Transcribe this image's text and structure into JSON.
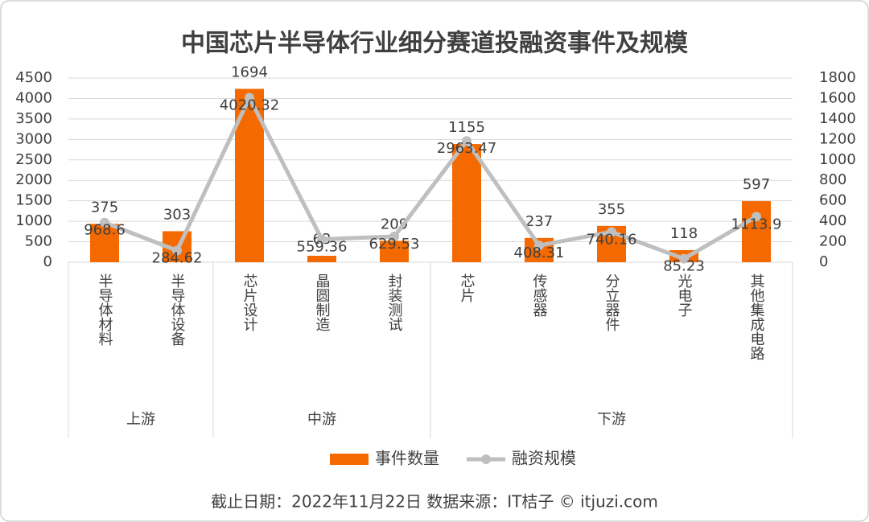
{
  "chart_data": {
    "type": "combo",
    "title": "中国芯片半导体行业细分赛道投融资事件及规模",
    "groups": [
      {
        "name": "上游",
        "categories": [
          "半导体材料",
          "半导体设备"
        ]
      },
      {
        "name": "中游",
        "categories": [
          "芯片设计",
          "晶圆制造",
          "封装测试"
        ]
      },
      {
        "name": "下游",
        "categories": [
          "芯片",
          "传感器",
          "分立器件",
          "光电子",
          "其他集成电路"
        ]
      }
    ],
    "series": [
      {
        "name": "事件数量",
        "type": "bar",
        "axis": "y2",
        "color": "#f56a00",
        "values": [
          375,
          303,
          1694,
          63,
          209,
          1155,
          237,
          355,
          118,
          597
        ]
      },
      {
        "name": "融资规模",
        "type": "line",
        "color": "#bfbfbf",
        "values": [
          968.6,
          284.62,
          4020.32,
          559.36,
          629.53,
          2963.47,
          408.31,
          740.16,
          85.23,
          1113.9
        ]
      }
    ],
    "ylim": [
      0,
      4500
    ],
    "yticks": [
      0,
      500,
      1000,
      1500,
      2000,
      2500,
      3000,
      3500,
      4000,
      4500
    ],
    "y2lim": [
      0,
      1800
    ],
    "y2ticks": [
      0,
      200,
      400,
      600,
      800,
      1000,
      1200,
      1400,
      1600,
      1800
    ],
    "grid": true,
    "legend": "bottom",
    "source": "截止日期：2022年11月22日   数据来源：IT桔子 © itjuzi.com"
  }
}
